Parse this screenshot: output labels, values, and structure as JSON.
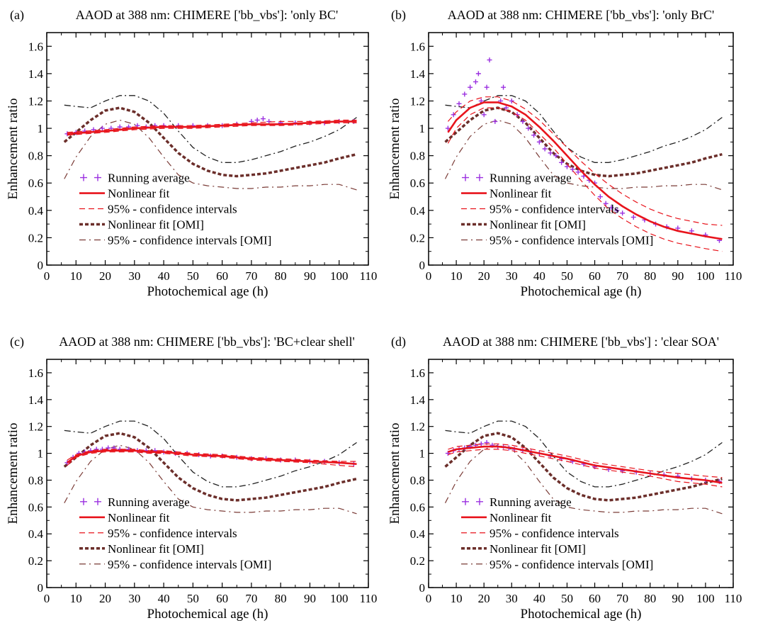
{
  "chart_data": [
    {
      "type": "line",
      "panel_label": "(a)",
      "title": "AAOD at 388 nm: CHIMERE ['bb_vbs']:  'only BC'",
      "xlabel": "Photochemical age (h)",
      "ylabel": "Enhancement ratio",
      "xlim": [
        0,
        110
      ],
      "ylim": [
        0,
        1.7
      ],
      "xticks": [
        "0",
        "10",
        "20",
        "30",
        "40",
        "50",
        "60",
        "70",
        "80",
        "90",
        "100",
        "110"
      ],
      "yticks": [
        "0",
        "0.2",
        "0.4",
        "0.6",
        "0.8",
        "1",
        "1.2",
        "1.4",
        "1.6"
      ],
      "legend_position": "lower-left",
      "series": [
        {
          "name": "Running average",
          "kind": "points",
          "x": [
            7,
            10,
            13,
            16,
            19,
            22,
            25,
            28,
            31,
            34,
            37,
            40,
            45,
            50,
            55,
            60,
            65,
            70,
            72,
            74,
            76,
            80,
            85,
            90,
            95,
            100,
            105
          ],
          "y": [
            0.96,
            0.97,
            0.98,
            0.99,
            1.0,
            1.0,
            1.01,
            1.01,
            1.02,
            1.01,
            1.02,
            1.02,
            1.02,
            1.02,
            1.02,
            1.02,
            1.03,
            1.05,
            1.06,
            1.07,
            1.05,
            1.04,
            1.04,
            1.04,
            1.04,
            1.05,
            1.05
          ]
        },
        {
          "name": "Nonlinear fit",
          "kind": "fit",
          "x": [
            7,
            20,
            30,
            40,
            50,
            60,
            70,
            80,
            90,
            100,
            106
          ],
          "y": [
            0.96,
            0.98,
            1.0,
            1.01,
            1.01,
            1.02,
            1.03,
            1.03,
            1.04,
            1.05,
            1.05
          ]
        },
        {
          "name": "95% - confidence intervals",
          "kind": "ci",
          "x": [
            7,
            20,
            30,
            40,
            50,
            60,
            70,
            80,
            90,
            100,
            106
          ],
          "y": [
            0.97,
            0.99,
            1.01,
            1.02,
            1.02,
            1.03,
            1.04,
            1.05,
            1.05,
            1.06,
            1.06
          ],
          "y_lower": [
            0.95,
            0.97,
            0.99,
            1.0,
            1.0,
            1.01,
            1.02,
            1.02,
            1.03,
            1.04,
            1.04
          ]
        }
      ]
    },
    {
      "type": "line",
      "panel_label": "(b)",
      "title": "AAOD at 388 nm: CHIMERE ['bb_vbs']: 'only BrC'",
      "xlabel": "Photochemical age (h)",
      "ylabel": "Enhancement ratio",
      "xlim": [
        0,
        110
      ],
      "ylim": [
        0,
        1.7
      ],
      "xticks": [
        "0",
        "10",
        "20",
        "30",
        "40",
        "50",
        "60",
        "70",
        "80",
        "90",
        "100",
        "110"
      ],
      "yticks": [
        "0",
        "0.2",
        "0.4",
        "0.6",
        "0.8",
        "1",
        "1.2",
        "1.4",
        "1.6"
      ],
      "legend_position": "lower-left",
      "series": [
        {
          "name": "Running average",
          "kind": "points",
          "x": [
            7,
            9,
            11,
            13,
            15,
            17,
            18,
            19,
            20,
            21,
            22,
            24,
            26,
            27,
            28,
            30,
            32,
            34,
            36,
            38,
            40,
            42,
            44,
            46,
            48,
            50,
            52,
            54,
            56,
            58,
            60,
            62,
            64,
            66,
            68,
            70,
            74,
            78,
            82,
            86,
            90,
            95,
            100,
            105
          ],
          "y": [
            1.0,
            1.1,
            1.18,
            1.25,
            1.3,
            1.34,
            1.4,
            1.2,
            1.1,
            1.3,
            1.5,
            1.05,
            1.2,
            1.3,
            1.15,
            1.2,
            1.1,
            1.05,
            1.0,
            0.95,
            0.9,
            0.85,
            0.82,
            0.8,
            0.75,
            0.72,
            0.7,
            0.68,
            0.65,
            0.62,
            0.6,
            0.5,
            0.45,
            0.42,
            0.4,
            0.38,
            0.35,
            0.33,
            0.3,
            0.28,
            0.27,
            0.25,
            0.22,
            0.18
          ]
        },
        {
          "name": "Nonlinear fit",
          "kind": "fit",
          "x": [
            7,
            10,
            15,
            20,
            25,
            30,
            35,
            40,
            45,
            50,
            55,
            60,
            65,
            70,
            75,
            80,
            85,
            90,
            95,
            100,
            106
          ],
          "y": [
            0.97,
            1.06,
            1.15,
            1.19,
            1.19,
            1.16,
            1.1,
            1.01,
            0.91,
            0.8,
            0.69,
            0.59,
            0.5,
            0.43,
            0.37,
            0.32,
            0.28,
            0.25,
            0.23,
            0.21,
            0.19
          ]
        },
        {
          "name": "95% - confidence intervals",
          "kind": "ci",
          "x": [
            7,
            10,
            15,
            20,
            25,
            30,
            35,
            40,
            45,
            50,
            55,
            60,
            65,
            70,
            75,
            80,
            85,
            90,
            95,
            100,
            106
          ],
          "y": [
            1.05,
            1.12,
            1.2,
            1.23,
            1.23,
            1.2,
            1.14,
            1.06,
            0.96,
            0.86,
            0.76,
            0.67,
            0.59,
            0.52,
            0.46,
            0.41,
            0.37,
            0.34,
            0.32,
            0.3,
            0.29
          ],
          "y_lower": [
            0.89,
            1.0,
            1.1,
            1.15,
            1.15,
            1.12,
            1.06,
            0.96,
            0.86,
            0.74,
            0.62,
            0.51,
            0.41,
            0.34,
            0.28,
            0.23,
            0.19,
            0.16,
            0.14,
            0.12,
            0.1
          ]
        }
      ]
    },
    {
      "type": "line",
      "panel_label": "(c)",
      "title": "AAOD at 388 nm: CHIMERE ['bb_vbs']: 'BC+clear shell'",
      "xlabel": "Photochemical age (h)",
      "ylabel": "Enhancement ratio",
      "xlim": [
        0,
        110
      ],
      "ylim": [
        0,
        1.7
      ],
      "xticks": [
        "0",
        "10",
        "20",
        "30",
        "40",
        "50",
        "60",
        "70",
        "80",
        "90",
        "100",
        "110"
      ],
      "yticks": [
        "0",
        "0.2",
        "0.4",
        "0.6",
        "0.8",
        "1",
        "1.2",
        "1.4",
        "1.6"
      ],
      "legend_position": "lower-left",
      "series": [
        {
          "name": "Running average",
          "kind": "points",
          "x": [
            7,
            9,
            11,
            13,
            15,
            17,
            19,
            21,
            23,
            25,
            28,
            31,
            34,
            37,
            40,
            44,
            48,
            52,
            56,
            60,
            65,
            70,
            75,
            80,
            85,
            90,
            95,
            100,
            105
          ],
          "y": [
            0.93,
            0.97,
            1.0,
            1.01,
            1.02,
            1.03,
            1.03,
            1.04,
            1.04,
            1.03,
            1.03,
            1.02,
            1.02,
            1.02,
            1.01,
            1.0,
            1.0,
            0.99,
            0.98,
            0.98,
            0.97,
            0.96,
            0.96,
            0.95,
            0.95,
            0.94,
            0.94,
            0.93,
            0.92
          ]
        },
        {
          "name": "Nonlinear fit",
          "kind": "fit",
          "x": [
            7,
            10,
            15,
            20,
            25,
            30,
            35,
            40,
            50,
            60,
            70,
            80,
            90,
            100,
            106
          ],
          "y": [
            0.93,
            0.98,
            1.01,
            1.02,
            1.02,
            1.02,
            1.01,
            1.01,
            0.99,
            0.98,
            0.96,
            0.95,
            0.94,
            0.93,
            0.92
          ]
        },
        {
          "name": "95% - confidence intervals",
          "kind": "ci",
          "x": [
            7,
            10,
            15,
            20,
            25,
            30,
            35,
            40,
            50,
            60,
            70,
            80,
            90,
            100,
            106
          ],
          "y": [
            0.95,
            0.99,
            1.02,
            1.03,
            1.03,
            1.03,
            1.02,
            1.02,
            1.0,
            0.99,
            0.97,
            0.96,
            0.95,
            0.94,
            0.94
          ],
          "y_lower": [
            0.91,
            0.97,
            1.0,
            1.01,
            1.01,
            1.01,
            1.0,
            1.0,
            0.98,
            0.97,
            0.95,
            0.94,
            0.93,
            0.91,
            0.9
          ]
        }
      ]
    },
    {
      "type": "line",
      "panel_label": "(d)",
      "title": "AAOD at 388 nm: CHIMERE ['bb_vbs'] : 'clear SOA'",
      "xlabel": "Photochemical age (h)",
      "ylabel": "Enhancement ratio",
      "xlim": [
        0,
        110
      ],
      "ylim": [
        0,
        1.7
      ],
      "xticks": [
        "0",
        "10",
        "20",
        "30",
        "40",
        "50",
        "60",
        "70",
        "80",
        "90",
        "100",
        "110"
      ],
      "yticks": [
        "0",
        "0.2",
        "0.4",
        "0.6",
        "0.8",
        "1",
        "1.2",
        "1.4",
        "1.6"
      ],
      "legend_position": "lower-left",
      "series": [
        {
          "name": "Running average",
          "kind": "points",
          "x": [
            7,
            9,
            11,
            13,
            15,
            17,
            19,
            21,
            23,
            25,
            27,
            29,
            31,
            34,
            37,
            40,
            44,
            48,
            52,
            56,
            60,
            65,
            70,
            75,
            80,
            85,
            90,
            95,
            100,
            105
          ],
          "y": [
            1.0,
            1.02,
            1.03,
            1.04,
            1.05,
            1.06,
            1.07,
            1.08,
            1.06,
            1.05,
            1.05,
            1.04,
            1.03,
            1.02,
            1.01,
            1.0,
            0.98,
            0.96,
            0.94,
            0.92,
            0.9,
            0.88,
            0.87,
            0.86,
            0.85,
            0.84,
            0.83,
            0.81,
            0.8,
            0.79
          ]
        },
        {
          "name": "Nonlinear fit",
          "kind": "fit",
          "x": [
            7,
            10,
            15,
            20,
            25,
            30,
            35,
            40,
            50,
            60,
            70,
            80,
            90,
            100,
            106
          ],
          "y": [
            1.01,
            1.03,
            1.04,
            1.05,
            1.05,
            1.04,
            1.02,
            1.0,
            0.96,
            0.91,
            0.88,
            0.85,
            0.82,
            0.8,
            0.78
          ]
        },
        {
          "name": "95% - confidence intervals",
          "kind": "ci",
          "x": [
            7,
            10,
            15,
            20,
            25,
            30,
            35,
            40,
            50,
            60,
            70,
            80,
            90,
            100,
            106
          ],
          "y": [
            1.03,
            1.05,
            1.06,
            1.07,
            1.07,
            1.06,
            1.04,
            1.02,
            0.98,
            0.93,
            0.9,
            0.87,
            0.85,
            0.83,
            0.82
          ],
          "y_lower": [
            0.99,
            1.01,
            1.02,
            1.03,
            1.03,
            1.02,
            1.0,
            0.98,
            0.94,
            0.89,
            0.86,
            0.83,
            0.79,
            0.77,
            0.75
          ]
        }
      ]
    }
  ],
  "omi_reference": {
    "fit_name": "Nonlinear fit [OMI]",
    "ci_name": "95% - confidence intervals [OMI]",
    "x": [
      6,
      10,
      15,
      20,
      25,
      30,
      35,
      40,
      45,
      50,
      55,
      60,
      65,
      70,
      75,
      80,
      85,
      90,
      95,
      100,
      106
    ],
    "fit": [
      0.9,
      0.97,
      1.06,
      1.13,
      1.15,
      1.12,
      1.04,
      0.93,
      0.82,
      0.74,
      0.69,
      0.66,
      0.65,
      0.66,
      0.67,
      0.69,
      0.71,
      0.73,
      0.75,
      0.78,
      0.81
    ],
    "ci_upper": [
      1.17,
      1.16,
      1.15,
      1.2,
      1.24,
      1.24,
      1.2,
      1.11,
      0.98,
      0.86,
      0.79,
      0.75,
      0.75,
      0.77,
      0.8,
      0.83,
      0.87,
      0.9,
      0.94,
      0.99,
      1.08
    ],
    "ci_lower": [
      0.63,
      0.79,
      0.94,
      1.03,
      1.06,
      1.03,
      0.93,
      0.79,
      0.66,
      0.6,
      0.58,
      0.57,
      0.56,
      0.56,
      0.57,
      0.57,
      0.58,
      0.58,
      0.59,
      0.59,
      0.55
    ]
  },
  "styles": {
    "points_color": "#9b30e0",
    "fit_color": "#e8141c",
    "omi_fit_color": "#6b2e2a",
    "omi_ci_color": "#7a3b36",
    "axis_color": "#000000"
  }
}
